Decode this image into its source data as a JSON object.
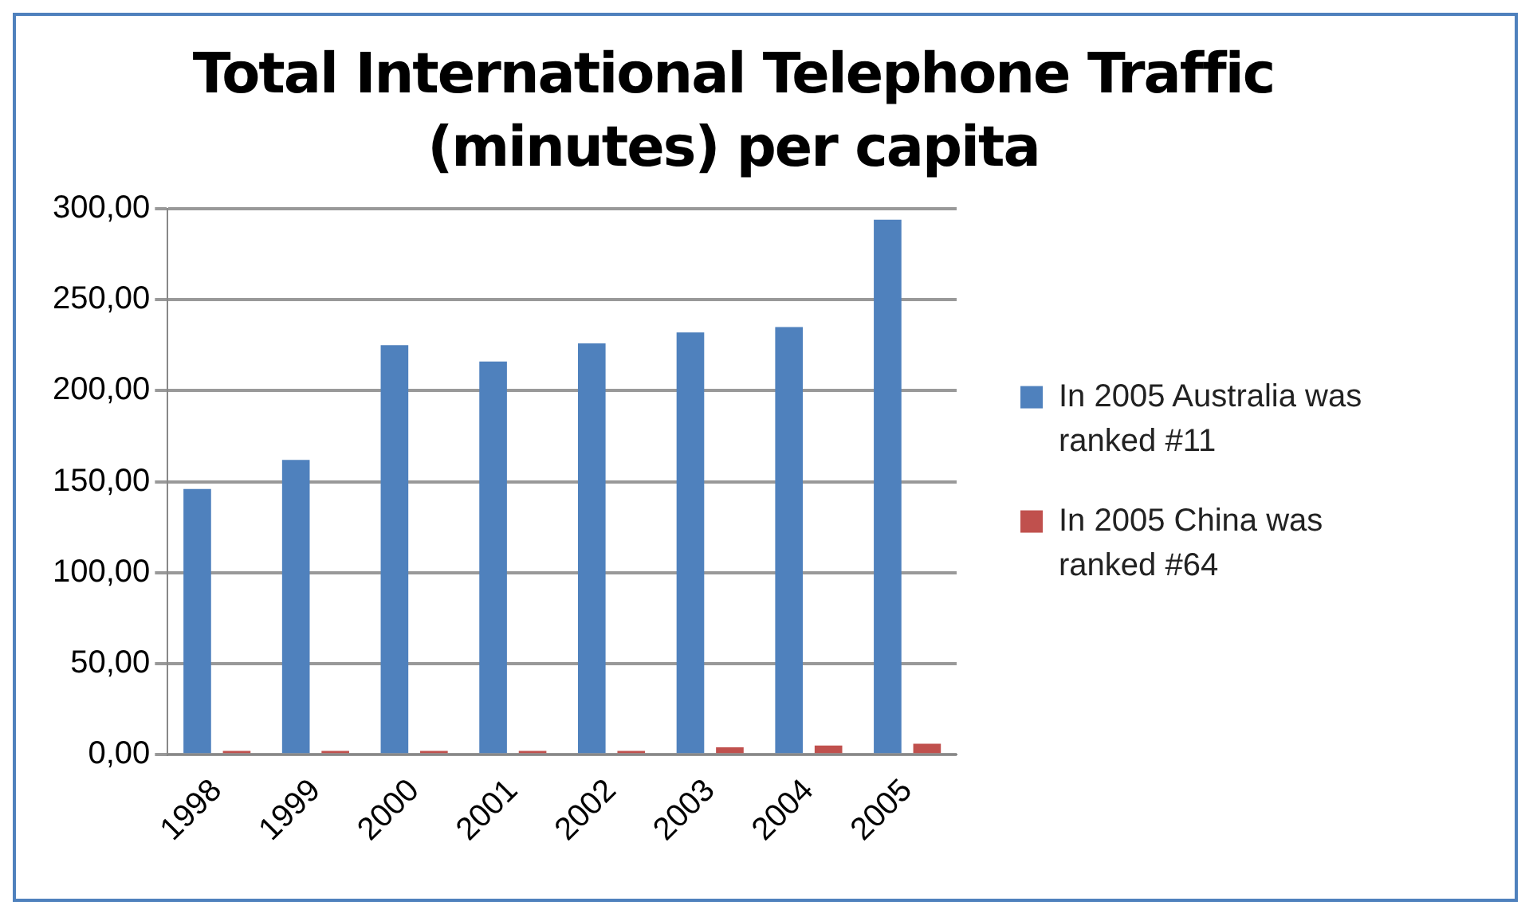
{
  "chart_data": {
    "type": "bar",
    "title": [
      "Total International Telephone Traffic",
      "(minutes) per capita"
    ],
    "categories": [
      "1998",
      "1999",
      "2000",
      "2001",
      "2002",
      "2003",
      "2004",
      "2005"
    ],
    "series": [
      {
        "name": "In 2005 Australia was ranked #11",
        "color": "#4f81bd",
        "values": [
          146,
          162,
          225,
          216,
          226,
          232,
          235,
          294
        ]
      },
      {
        "name": "In 2005 China was ranked #64",
        "color": "#c0504d",
        "values": [
          2,
          2,
          2,
          2,
          2,
          4,
          5,
          6
        ]
      }
    ],
    "ylim": [
      0,
      300
    ],
    "yticks": [
      {
        "value": 0,
        "label": "0,00"
      },
      {
        "value": 50,
        "label": "50,00"
      },
      {
        "value": 100,
        "label": "100,00"
      },
      {
        "value": 150,
        "label": "150,00"
      },
      {
        "value": 200,
        "label": "200,00"
      },
      {
        "value": 250,
        "label": "250,00"
      },
      {
        "value": 300,
        "label": "300,00"
      }
    ],
    "grid": "y",
    "legend": "right"
  }
}
